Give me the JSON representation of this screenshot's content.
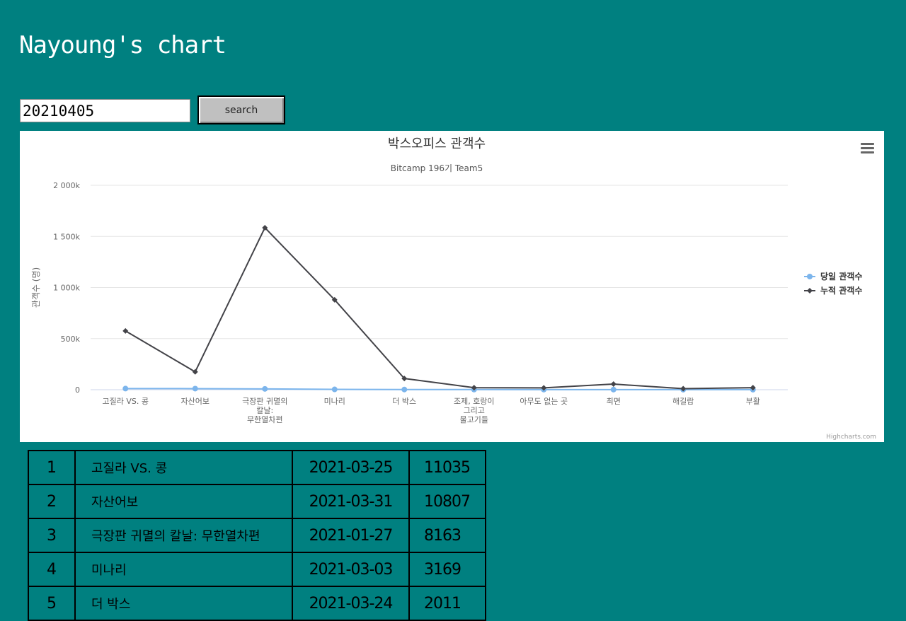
{
  "header": {
    "title": "Nayoung's chart"
  },
  "search": {
    "value": "20210405",
    "button_label": "search"
  },
  "chart_data": {
    "type": "line",
    "title": "박스오피스 관객수",
    "subtitle": "Bitcamp 196기 Team5",
    "ylabel": "관객수 (명)",
    "xlabel": "",
    "ylim": [
      0,
      2000000
    ],
    "yticks": [
      0,
      500000,
      1000000,
      1500000,
      2000000
    ],
    "ytick_labels": [
      "0",
      "500k",
      "1 000k",
      "1 500k",
      "2 000k"
    ],
    "categories": [
      [
        "고질라 VS. 콩"
      ],
      [
        "자산어보"
      ],
      [
        "극장판 귀멸의",
        "칼날:",
        "무한열차편"
      ],
      [
        "미나리"
      ],
      [
        "더 박스"
      ],
      [
        "조제, 호랑이",
        "그리고",
        "물고기들"
      ],
      [
        "아무도 없는 곳"
      ],
      [
        "최면"
      ],
      [
        "해길랍"
      ],
      [
        "부활"
      ]
    ],
    "series": [
      {
        "name": "당일 관객수",
        "color": "#7cb5ec",
        "marker": "circle",
        "values": [
          11035,
          10807,
          8163,
          3169,
          2011,
          1400,
          1200,
          1000,
          800,
          700
        ]
      },
      {
        "name": "누적 관객수",
        "color": "#434348",
        "marker": "diamond",
        "values": [
          575000,
          175000,
          1585000,
          880000,
          110000,
          20000,
          18000,
          55000,
          10000,
          20000
        ]
      }
    ],
    "grid": true,
    "legend": "right",
    "credits": "Highcharts.com"
  },
  "table": {
    "rows": [
      {
        "rank": "1",
        "title": "고질라 VS. 콩",
        "date": "2021-03-25",
        "audience": "11035"
      },
      {
        "rank": "2",
        "title": "자산어보",
        "date": "2021-03-31",
        "audience": "10807"
      },
      {
        "rank": "3",
        "title": "극장판 귀멸의 칼날: 무한열차편",
        "date": "2021-01-27",
        "audience": "8163"
      },
      {
        "rank": "4",
        "title": "미나리",
        "date": "2021-03-03",
        "audience": "3169"
      },
      {
        "rank": "5",
        "title": "더 박스",
        "date": "2021-03-24",
        "audience": "2011"
      }
    ]
  }
}
